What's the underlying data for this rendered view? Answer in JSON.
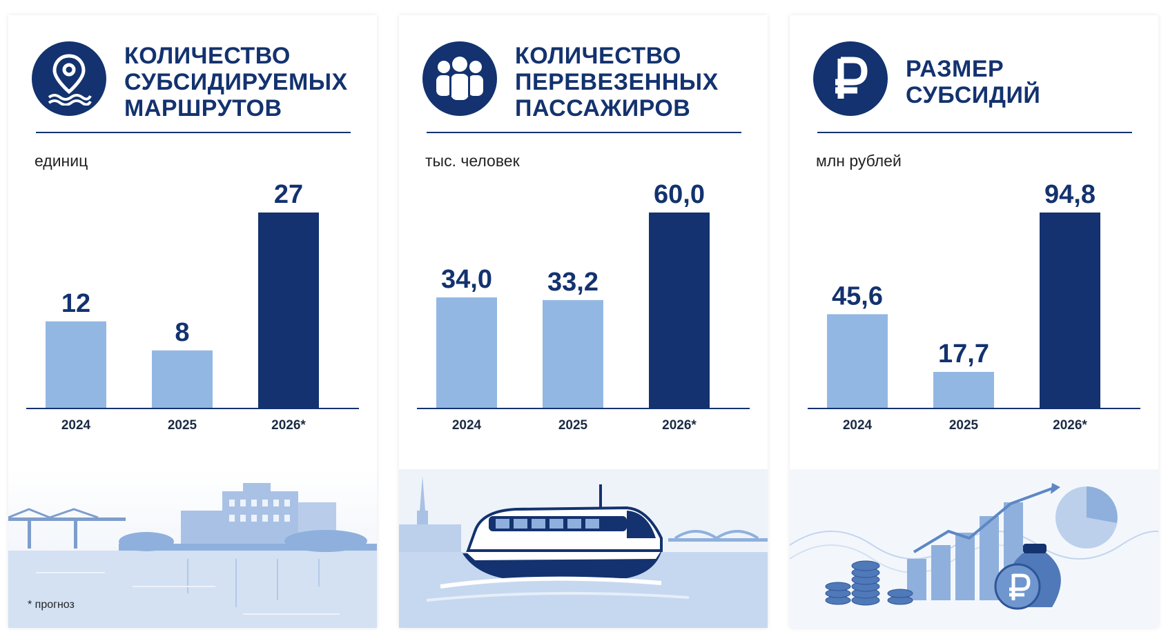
{
  "colors": {
    "navy": "#13326f",
    "light_bar": "#93b7e3",
    "dark_bar": "#13326f",
    "scene_sky": "#eef3fa",
    "scene_water": "#c6d8f0"
  },
  "panels": [
    {
      "icon": "map-pin-water-icon",
      "title_lines": [
        "КОЛИЧЕСТВО",
        "СУБСИДИРУЕМЫХ",
        "МАРШРУТОВ"
      ],
      "unit": "единиц",
      "illustration": "river-city-icon"
    },
    {
      "icon": "people-group-icon",
      "title_lines": [
        "КОЛИЧЕСТВО",
        "ПЕРЕВЕЗЕННЫХ",
        "ПАССАЖИРОВ"
      ],
      "unit": "тыс. человек",
      "illustration": "hydrofoil-boat-icon"
    },
    {
      "icon": "ruble-icon",
      "title_lines": [
        "РАЗМЕР",
        "СУБСИДИЙ"
      ],
      "unit": "млн рублей",
      "illustration": "finance-growth-icon"
    }
  ],
  "footnote": "* прогноз",
  "chart_data": [
    {
      "type": "bar",
      "title": "КОЛИЧЕСТВО СУБСИДИРУЕМЫХ МАРШРУТОВ",
      "ylabel": "единиц",
      "categories": [
        "2024",
        "2025",
        "2026*"
      ],
      "values": [
        12,
        8,
        27
      ],
      "value_labels": [
        "12",
        "8",
        "27"
      ],
      "highlight_index": 2,
      "ylim": [
        0,
        27
      ]
    },
    {
      "type": "bar",
      "title": "КОЛИЧЕСТВО ПЕРЕВЕЗЕННЫХ ПАССАЖИРОВ",
      "ylabel": "тыс. человек",
      "categories": [
        "2024",
        "2025",
        "2026*"
      ],
      "values": [
        34.0,
        33.2,
        60.0
      ],
      "value_labels": [
        "34,0",
        "33,2",
        "60,0"
      ],
      "highlight_index": 2,
      "ylim": [
        0,
        60
      ]
    },
    {
      "type": "bar",
      "title": "РАЗМЕР СУБСИДИЙ",
      "ylabel": "млн рублей",
      "categories": [
        "2024",
        "2025",
        "2026*"
      ],
      "values": [
        45.6,
        17.7,
        94.8
      ],
      "value_labels": [
        "45,6",
        "17,7",
        "94,8"
      ],
      "highlight_index": 2,
      "ylim": [
        0,
        94.8
      ]
    }
  ]
}
